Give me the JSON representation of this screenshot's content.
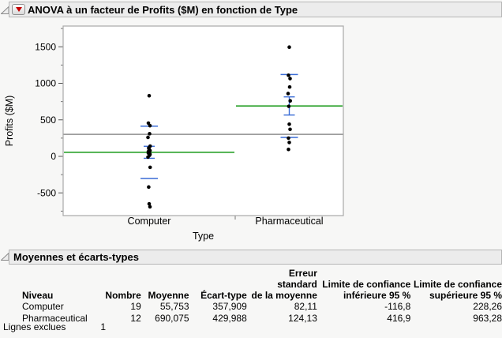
{
  "header": {
    "title": "ANOVA à un facteur de Profits ($M) en fonction de Type",
    "disclosure_icon": "disclosure-open-triangle",
    "menu_icon": "red-triangle-menu"
  },
  "section": {
    "title": "Moyennes et écarts-types",
    "disclosure_icon": "disclosure-open-triangle"
  },
  "chart_data": {
    "type": "scatter",
    "title": "",
    "xlabel": "Type",
    "ylabel": "Profits ($M)",
    "categories": [
      "Computer",
      "Pharmaceutical"
    ],
    "y_ticks": [
      1500,
      1000,
      500,
      0,
      -500
    ],
    "y_minor_ticks": [
      1750,
      1250,
      750,
      250,
      -250,
      -750
    ],
    "ylim": [
      -810,
      1785
    ],
    "grid": false,
    "grand_mean": 301.3,
    "groups": [
      {
        "label": "Computer",
        "n": 19,
        "mean": 55.753,
        "sd": 357.909,
        "se": 82.11,
        "points": [
          830,
          455,
          420,
          310,
          260,
          140,
          115,
          95,
          80,
          65,
          55,
          45,
          30,
          15,
          -10,
          -150,
          -420,
          -650,
          -690
        ]
      },
      {
        "label": "Pharmaceutical",
        "n": 12,
        "mean": 690.075,
        "sd": 429.988,
        "se": 124.13,
        "points": [
          1495,
          1110,
          1065,
          950,
          860,
          760,
          685,
          440,
          370,
          250,
          190,
          95
        ]
      }
    ],
    "marks": {
      "green_line": "group mean",
      "blue_short_ticks": "mean ± std dev",
      "blue_error_bar": "mean ± std error",
      "gray_line": "grand mean"
    },
    "colors": {
      "mean_line": "#28a028",
      "error_marks": "#3a6cd6",
      "grand_mean_line": "#8e8e8e",
      "point": "#000000",
      "frame": "#a8a8a8",
      "plot_bg": "#ffffff"
    }
  },
  "table": {
    "headers": [
      "Niveau",
      "Nombre",
      "Moyenne",
      "Écart-type",
      "Erreur standard\nde la moyenne",
      "Limite de confiance\ninférieure 95 %",
      "Limite de confiance\nsupérieure 95 %"
    ],
    "rows": [
      [
        "Computer",
        "19",
        "55,753",
        "357,909",
        "82,11",
        "-116,8",
        "228,26"
      ],
      [
        "Pharmaceutical",
        "12",
        "690,075",
        "429,988",
        "124,13",
        "416,9",
        "963,28"
      ]
    ],
    "footer": {
      "label": "Lignes exclues",
      "value": "1"
    }
  }
}
